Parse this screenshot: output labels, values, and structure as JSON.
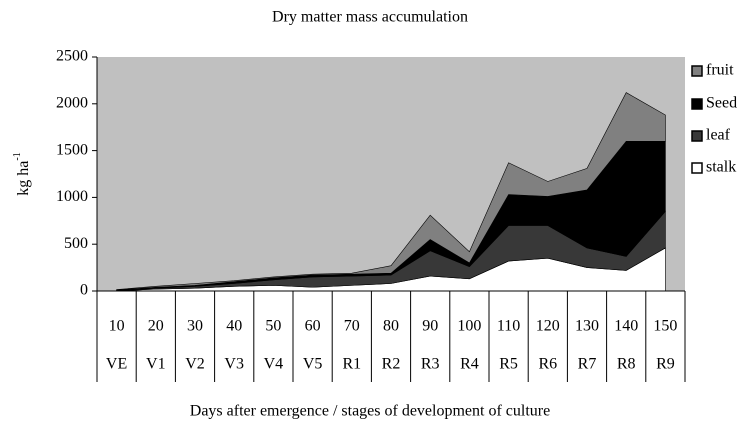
{
  "chart_data": {
    "type": "stacked_area",
    "title": "Dry matter mass accumulation",
    "y_label": "kg ha",
    "y_label_sup": "-1",
    "x_label": "Days after emergence / stages of development of culture",
    "categories": [
      "10",
      "20",
      "30",
      "40",
      "50",
      "60",
      "70",
      "80",
      "90",
      "100",
      "110",
      "120",
      "130",
      "140",
      "150"
    ],
    "stages": [
      "VE",
      "V1",
      "V2",
      "V3",
      "V4",
      "V5",
      "R1",
      "R2",
      "R3",
      "R4",
      "R5",
      "R6",
      "R7",
      "R8",
      "R9"
    ],
    "series": [
      {
        "name": "stalk",
        "color": "#ffffff",
        "values": [
          0,
          20,
          30,
          50,
          60,
          40,
          60,
          80,
          160,
          130,
          320,
          350,
          250,
          220,
          460
        ]
      },
      {
        "name": "leaf",
        "color": "#383838",
        "values": [
          5,
          10,
          20,
          30,
          60,
          110,
          100,
          90,
          270,
          130,
          380,
          350,
          210,
          150,
          390
        ]
      },
      {
        "name": "Seed",
        "color": "#000000",
        "values": [
          5,
          10,
          10,
          20,
          20,
          20,
          20,
          20,
          120,
          40,
          330,
          310,
          620,
          1230,
          750
        ]
      },
      {
        "name": "fruit",
        "color": "#808080",
        "values": [
          5,
          10,
          20,
          10,
          10,
          10,
          10,
          80,
          260,
          120,
          340,
          160,
          230,
          520,
          280
        ]
      }
    ],
    "ylim": [
      0,
      2500
    ],
    "yticks": [
      0,
      500,
      1000,
      1500,
      2000,
      2500
    ],
    "plot_background": "#c0c0c0",
    "legend": "right"
  }
}
